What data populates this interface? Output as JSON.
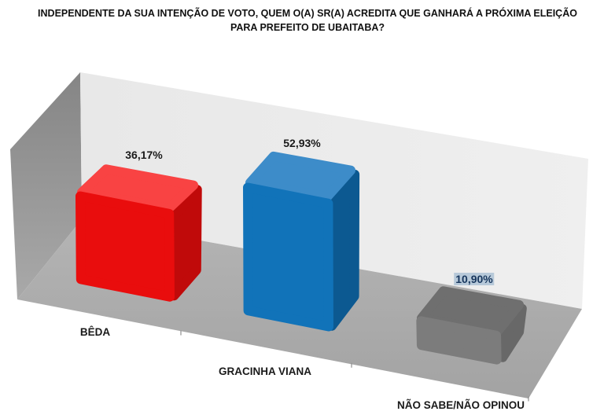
{
  "title_lines": [
    "INDEPENDENTE DA SUA INTENÇÃO DE VOTO, QUEM O(A) SR(A) ACREDITA QUE GANHARÁ A PRÓXIMA ELEIÇÃO",
    "PARA PREFEITO DE UBAITABA?"
  ],
  "chart_data": {
    "type": "bar",
    "projection": "3d",
    "title": "INDEPENDENTE DA SUA INTENÇÃO DE VOTO, QUEM O(A) SR(A) ACREDITA QUE GANHARÁ A PRÓXIMA ELEIÇÃO PARA PREFEITO DE UBAITABA?",
    "categories": [
      "BÊDA",
      "GRACINHA VIANA",
      "NÃO SABE/NÃO OPINOU"
    ],
    "values": [
      36.17,
      52.93,
      10.9
    ],
    "value_labels": [
      "36,17%",
      "52,93%",
      "10,90%"
    ],
    "unit": "%",
    "ylim": [
      0,
      60
    ],
    "legend": "none",
    "gridlines": "off",
    "axis_labels": "none",
    "bar_colors": [
      {
        "front": "#e90d0d",
        "top": "#f94343",
        "side": "#c00a0a"
      },
      {
        "front": "#1173b9",
        "top": "#3d8cc9",
        "side": "#0c5991"
      },
      {
        "front": "#7c7c7c",
        "top": "#6f6f6f",
        "side": "#686868"
      }
    ],
    "highlight": {
      "index": 2,
      "color": "#b7c9d9",
      "text_color": "#17365d"
    }
  }
}
